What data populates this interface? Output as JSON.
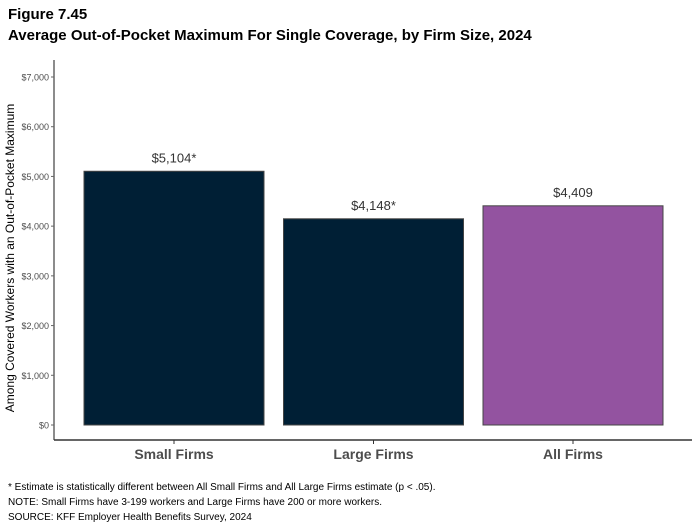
{
  "figure_label": "Figure 7.45",
  "chart_data": {
    "type": "bar",
    "title": "Average Out-of-Pocket Maximum For Single Coverage, by Firm Size, 2024",
    "xlabel": "",
    "ylabel": "Among Covered Workers with an Out-of-Pocket Maximum",
    "categories": [
      "Small Firms",
      "Large Firms",
      "All Firms"
    ],
    "values": [
      5104,
      4148,
      4409
    ],
    "data_labels": [
      "$5,104*",
      "$4,148*",
      "$4,409"
    ],
    "colors": [
      "#001f35",
      "#001f35",
      "#9353a0"
    ],
    "ylim": [
      0,
      7000
    ],
    "yticks": [
      0,
      1000,
      2000,
      3000,
      4000,
      5000,
      6000,
      7000
    ],
    "ytick_labels": [
      "$0",
      "$1,000",
      "$2,000",
      "$3,000",
      "$4,000",
      "$5,000",
      "$6,000",
      "$7,000"
    ],
    "grid": false
  },
  "notes": [
    "* Estimate is statistically different between All Small Firms and All Large Firms estimate (p < .05).",
    "NOTE: Small Firms have 3-199 workers and Large Firms have 200 or more workers.",
    "SOURCE: KFF Employer Health Benefits Survey, 2024"
  ]
}
